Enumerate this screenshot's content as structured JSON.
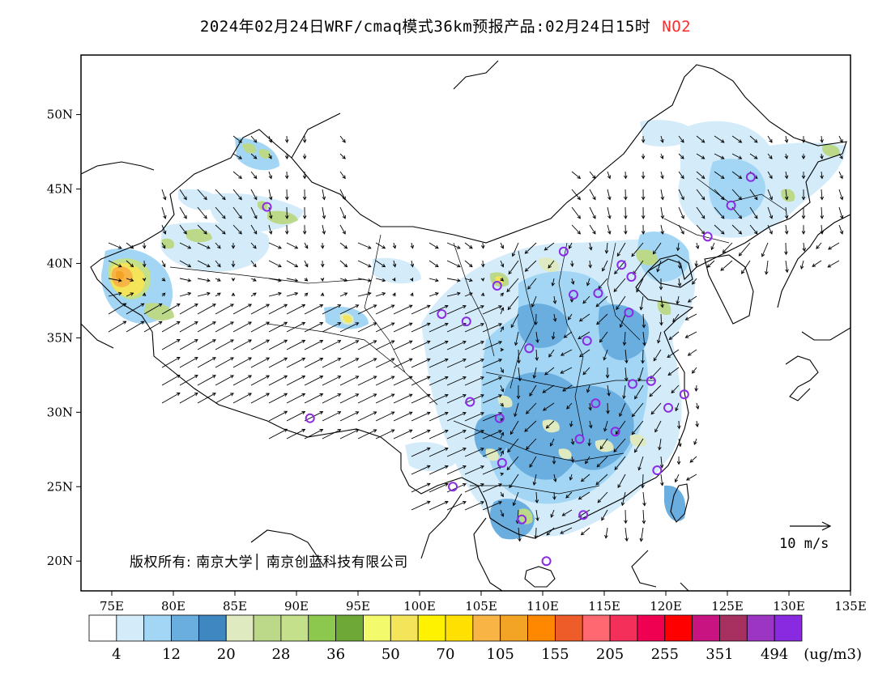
{
  "title": {
    "main": "2024年02月24日WRF/cmaq模式36km预报产品:02月24日15时",
    "species": "NO2",
    "species_color": "#ff2a2a"
  },
  "axes": {
    "x_ticks": [
      "75E",
      "80E",
      "85E",
      "90E",
      "95E",
      "100E",
      "105E",
      "110E",
      "115E",
      "120E",
      "125E",
      "130E",
      "135E"
    ],
    "y_ticks": [
      "50N",
      "45N",
      "40N",
      "35N",
      "30N",
      "25N",
      "20N"
    ],
    "lon_range": [
      72.5,
      135
    ],
    "lat_range": [
      18,
      54
    ]
  },
  "copyright": "版权所有: 南京大学│ 南京创蓝科技有限公司",
  "wind_reference": {
    "value": 10,
    "label": "10  m/s"
  },
  "colorbar": {
    "colors": [
      "#ffffff",
      "#d4ecfa",
      "#a2d6f4",
      "#6aaee0",
      "#3f87c0",
      "#dfeac0",
      "#bcd98a",
      "#c4e08a",
      "#8cc84e",
      "#6ea836",
      "#f3fa6c",
      "#f4e45a",
      "#fff200",
      "#ffe000",
      "#f8b444",
      "#f4a424",
      "#ff8800",
      "#ee5c2a",
      "#ff6870",
      "#f4305a",
      "#f00050",
      "#ff0000",
      "#c81480",
      "#a83060",
      "#9c34c4",
      "#8a2ae0"
    ],
    "labels": [
      "4",
      "12",
      "20",
      "28",
      "36",
      "50",
      "70",
      "105",
      "155",
      "205",
      "255",
      "351",
      "494"
    ],
    "unit": "(ug/m3)"
  },
  "stations": [
    [
      126.9,
      45.8
    ],
    [
      125.3,
      43.9
    ],
    [
      123.4,
      41.8
    ],
    [
      117.2,
      39.1
    ],
    [
      116.4,
      39.9
    ],
    [
      114.5,
      38.0
    ],
    [
      112.5,
      37.9
    ],
    [
      111.7,
      40.8
    ],
    [
      106.3,
      38.5
    ],
    [
      103.8,
      36.1
    ],
    [
      101.8,
      36.6
    ],
    [
      108.9,
      34.3
    ],
    [
      113.6,
      34.8
    ],
    [
      117.0,
      36.7
    ],
    [
      104.1,
      30.7
    ],
    [
      106.5,
      29.6
    ],
    [
      114.3,
      30.6
    ],
    [
      113.0,
      28.2
    ],
    [
      115.9,
      28.7
    ],
    [
      117.3,
      31.9
    ],
    [
      118.8,
      32.1
    ],
    [
      120.2,
      30.3
    ],
    [
      121.5,
      31.2
    ],
    [
      119.3,
      26.1
    ],
    [
      113.3,
      23.1
    ],
    [
      108.3,
      22.8
    ],
    [
      110.3,
      20.0
    ],
    [
      106.7,
      26.6
    ],
    [
      102.7,
      25.0
    ],
    [
      91.1,
      29.6
    ],
    [
      87.6,
      43.8
    ]
  ]
}
